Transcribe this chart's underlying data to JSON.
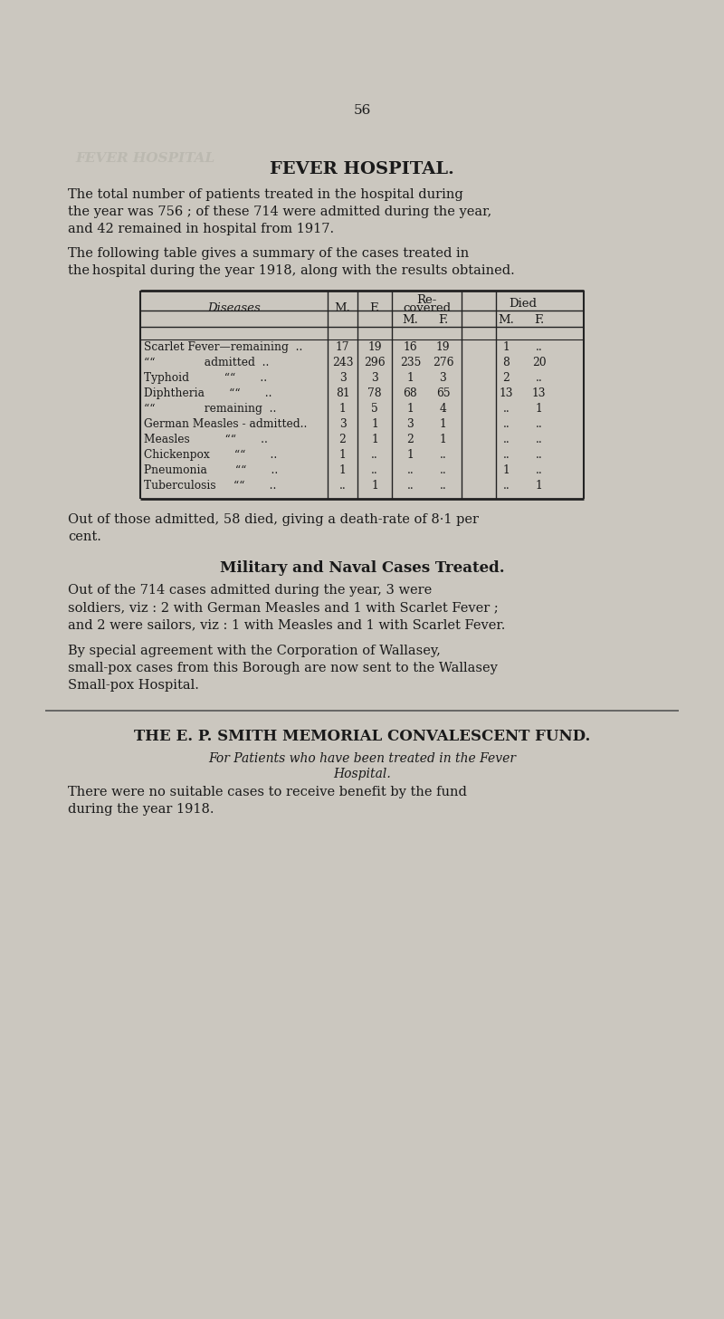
{
  "page_number": "56",
  "title": "FEVER HOSPITAL.",
  "bg_color": "#cbc7bf",
  "text_color": "#1a1a1a",
  "para1_lines": [
    "The total number of patients treated in the hospital during",
    "the year was 756 ; of these 714 were admitted during the year,",
    "and 42 remained in hospital from 1917."
  ],
  "para2_lines": [
    "The following table gives a summary of the cases treated in",
    "the hospital during the year 1918, along with the results obtained."
  ],
  "row_labels": [
    "Scarlet Fever—remaining  ..",
    "““              admitted  ..",
    "Typhoid          ““       ..",
    "Diphtheria       ““       ..",
    "““              remaining  ..",
    "German Measles - admitted..",
    "Measles          ““       ..",
    "Chickenpox       ““       ..",
    "Pneumonia        ““       ..",
    "Tuberculosis     ““       .."
  ],
  "row_data": [
    [
      "17",
      "19",
      "16",
      "19",
      "1",
      ".."
    ],
    [
      "243",
      "296",
      "235",
      "276",
      "8",
      "20"
    ],
    [
      "3",
      "3",
      "1",
      "3",
      "2",
      ".."
    ],
    [
      "81",
      "78",
      "68",
      "65",
      "13",
      "13"
    ],
    [
      "1",
      "5",
      "1",
      "4",
      "..",
      "1"
    ],
    [
      "3",
      "1",
      "3",
      "1",
      "..",
      ".."
    ],
    [
      "2",
      "1",
      "2",
      "1",
      "..",
      ".."
    ],
    [
      "1",
      "..",
      "1",
      "..",
      "..",
      ".."
    ],
    [
      "1",
      "..",
      "..",
      "..",
      "1",
      ".."
    ],
    [
      "..",
      "1",
      "..",
      "..",
      "..",
      "1"
    ]
  ],
  "para3_lines": [
    "Out of those admitted, 58 died, giving a death-rate of 8·1 per",
    "cent."
  ],
  "section2_title": "Military and Naval Cases Treated.",
  "para4_lines": [
    "Out of the 714 cases admitted during the year, 3 were",
    "soldiers, viz : 2 with German Measles and 1 with Scarlet Fever ;",
    "and 2 were sailors, viz : 1 with Measles and 1 with Scarlet Fever."
  ],
  "para5_lines": [
    "By special agreement with the Corporation of Wallasey,",
    "small-pox cases from this Borough are now sent to the Wallasey",
    "Small-pox Hospital."
  ],
  "section3_title": "THE E. P. SMITH MEMORIAL CONVALESCENT FUND.",
  "section3_sub1": "For Patients who have been treated in the Fever",
  "section3_sub2": "Hospital.",
  "para6_lines": [
    "There were no suitable cases to receive benefit by the fund",
    "during the year 1918."
  ],
  "watermark_text": "FEVER HOSPITAL",
  "line_color": "#222222"
}
